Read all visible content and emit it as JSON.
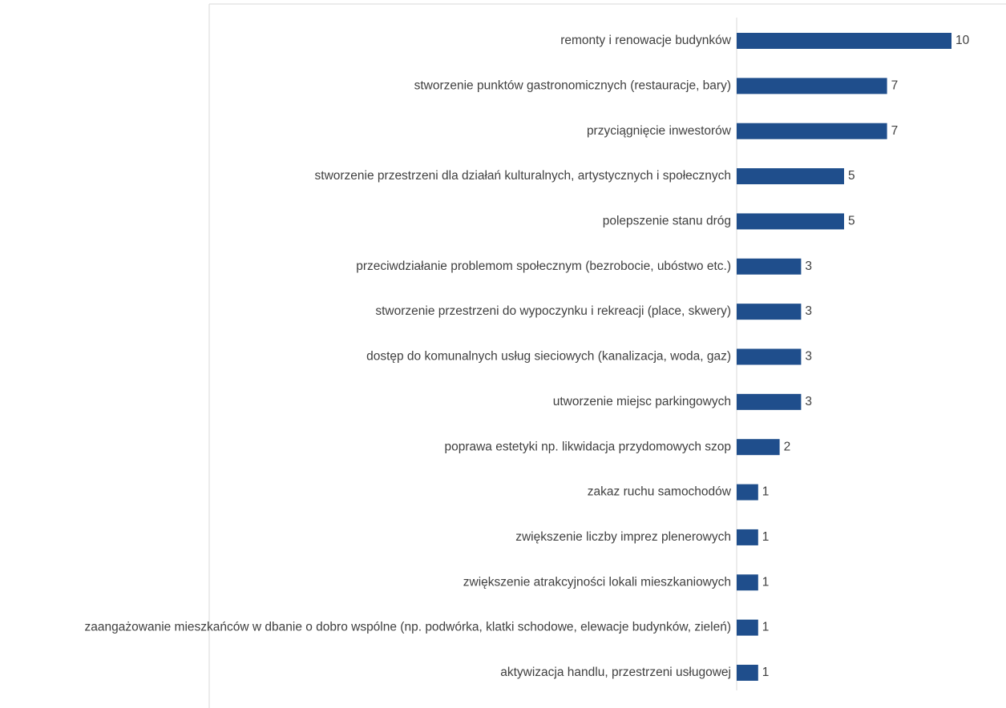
{
  "chart_data": {
    "type": "bar",
    "orientation": "horizontal",
    "categories": [
      "remonty i renowacje budynków",
      "stworzenie punktów gastronomicznych (restauracje, bary)",
      "przyciągnięcie inwestorów",
      "stworzenie przestrzeni dla działań kulturalnych, artystycznych i społecznych",
      "polepszenie stanu dróg",
      "przeciwdziałanie problemom społecznym (bezrobocie, ubóstwo etc.)",
      "stworzenie przestrzeni do wypoczynku i rekreacji (place, skwery)",
      "dostęp do komunalnych usług sieciowych (kanalizacja, woda, gaz)",
      "utworzenie miejsc parkingowych",
      "poprawa estetyki np. likwidacja przydomowych szop",
      "zakaz ruchu samochodów",
      "zwiększenie liczby imprez plenerowych",
      "zwiększenie atrakcyjności lokali mieszkaniowych",
      "zaangażowanie mieszkańców w dbanie o dobro wspólne (np. podwórka, klatki schodowe, elewacje budynków, zieleń)",
      "aktywizacja handlu, przestrzeni usługowej"
    ],
    "values": [
      10,
      7,
      7,
      5,
      5,
      3,
      3,
      3,
      3,
      2,
      1,
      1,
      1,
      1,
      1
    ],
    "color": "#1f4e8c"
  }
}
